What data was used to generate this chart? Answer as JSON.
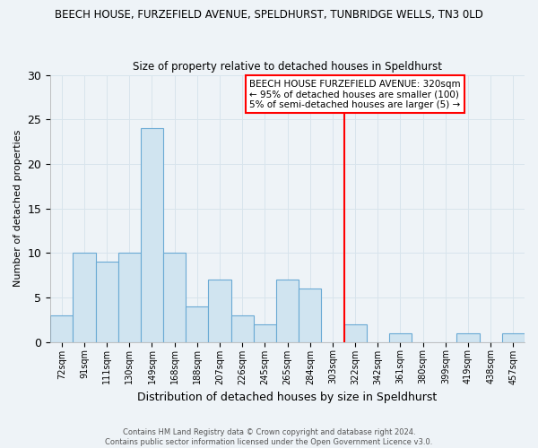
{
  "title1": "BEECH HOUSE, FURZEFIELD AVENUE, SPELDHURST, TUNBRIDGE WELLS, TN3 0LD",
  "title2": "Size of property relative to detached houses in Speldhurst",
  "xlabel": "Distribution of detached houses by size in Speldhurst",
  "ylabel": "Number of detached properties",
  "bin_labels": [
    "72sqm",
    "91sqm",
    "111sqm",
    "130sqm",
    "149sqm",
    "168sqm",
    "188sqm",
    "207sqm",
    "226sqm",
    "245sqm",
    "265sqm",
    "284sqm",
    "303sqm",
    "322sqm",
    "342sqm",
    "361sqm",
    "380sqm",
    "399sqm",
    "419sqm",
    "438sqm",
    "457sqm"
  ],
  "bar_values": [
    3,
    10,
    9,
    10,
    24,
    10,
    4,
    7,
    3,
    2,
    7,
    6,
    0,
    2,
    0,
    1,
    0,
    0,
    1,
    0,
    1
  ],
  "bar_color": "#d0e4f0",
  "bar_edge_color": "#6aaad4",
  "grid_color": "#d8e4ec",
  "vline_color": "red",
  "vline_position": 12.5,
  "annotation_title": "BEECH HOUSE FURZEFIELD AVENUE: 320sqm",
  "annotation_line1": "← 95% of detached houses are smaller (100)",
  "annotation_line2": "5% of semi-detached houses are larger (5) →",
  "annotation_box_color": "#ffffff",
  "annotation_box_edge": "red",
  "ylim": [
    0,
    30
  ],
  "yticks": [
    0,
    5,
    10,
    15,
    20,
    25,
    30
  ],
  "footer1": "Contains HM Land Registry data © Crown copyright and database right 2024.",
  "footer2": "Contains public sector information licensed under the Open Government Licence v3.0.",
  "bg_color": "#eef3f7"
}
